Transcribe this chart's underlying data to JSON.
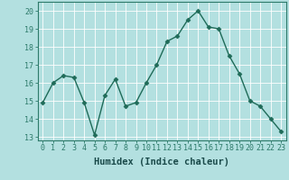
{
  "x": [
    0,
    1,
    2,
    3,
    4,
    5,
    6,
    7,
    8,
    9,
    10,
    11,
    12,
    13,
    14,
    15,
    16,
    17,
    18,
    19,
    20,
    21,
    22,
    23
  ],
  "y": [
    14.9,
    16.0,
    16.4,
    16.3,
    14.9,
    13.1,
    15.3,
    16.2,
    14.7,
    14.9,
    16.0,
    17.0,
    18.3,
    18.6,
    19.5,
    20.0,
    19.1,
    19.0,
    17.5,
    16.5,
    15.0,
    14.7,
    14.0,
    13.3
  ],
  "line_color": "#1f6b58",
  "marker": "D",
  "markersize": 2.5,
  "linewidth": 1.0,
  "xlabel": "Humidex (Indice chaleur)",
  "xlim": [
    -0.5,
    23.5
  ],
  "ylim": [
    12.8,
    20.5
  ],
  "yticks": [
    13,
    14,
    15,
    16,
    17,
    18,
    19,
    20
  ],
  "xticks": [
    0,
    1,
    2,
    3,
    4,
    5,
    6,
    7,
    8,
    9,
    10,
    11,
    12,
    13,
    14,
    15,
    16,
    17,
    18,
    19,
    20,
    21,
    22,
    23
  ],
  "bg_color": "#b3e0e0",
  "grid_color": "#ffffff",
  "axis_color": "#2d7a6a",
  "tick_label_color": "#1a4a4a",
  "xlabel_fontsize": 7.5,
  "tick_fontsize": 6.0
}
